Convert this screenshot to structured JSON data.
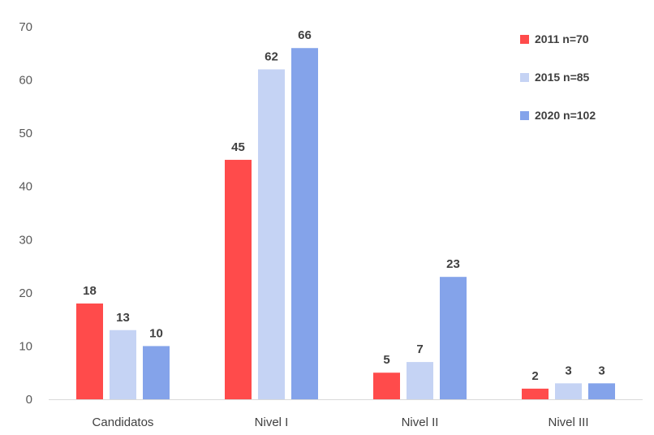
{
  "chart_data": {
    "type": "bar",
    "categories": [
      "Candidatos",
      "Nivel I",
      "Nivel II",
      "Nivel III"
    ],
    "series": [
      {
        "name": "2011 n=70",
        "color": "#ff4b4b",
        "values": [
          18,
          45,
          5,
          2
        ]
      },
      {
        "name": "2015 n=85",
        "color": "#c5d3f4",
        "values": [
          13,
          62,
          7,
          3
        ]
      },
      {
        "name": "2020 n=102",
        "color": "#84a3ea",
        "values": [
          10,
          66,
          23,
          3
        ]
      }
    ],
    "ylim": [
      0,
      70
    ],
    "yticks": [
      0,
      10,
      20,
      30,
      40,
      50,
      60,
      70
    ],
    "grid": false,
    "legend_position": "top-right",
    "axis_color": "#d9d9d9"
  }
}
